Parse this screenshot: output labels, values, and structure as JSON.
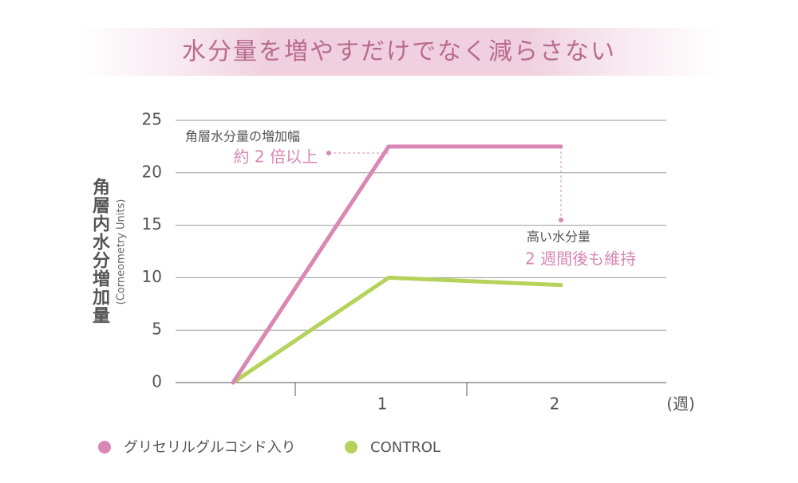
{
  "chart_data": {
    "type": "line",
    "title": "水分量を増やすだけでなく減らさない",
    "y_label": "角層内水分増加量",
    "y_sublabel": "(Corneometry Units)",
    "x_unit": "(週)",
    "categories": [
      null,
      "1",
      "2"
    ],
    "series": [
      {
        "name": "グリセリルグルコシド入り",
        "color": "#d987b4",
        "values": [
          0,
          22.5,
          22.5
        ]
      },
      {
        "name": "CONTROL",
        "color": "#b5d25a",
        "values": [
          0,
          10,
          9.3
        ]
      }
    ],
    "ylim": [
      0,
      25
    ],
    "yticks": [
      0,
      5,
      10,
      15,
      20,
      25
    ],
    "grid": true,
    "annotations": [
      {
        "text": "角層水分量の増加幅",
        "highlight": "約 2 倍以上"
      },
      {
        "text": "高い水分量",
        "highlight": "2 週間後も維持"
      }
    ]
  }
}
